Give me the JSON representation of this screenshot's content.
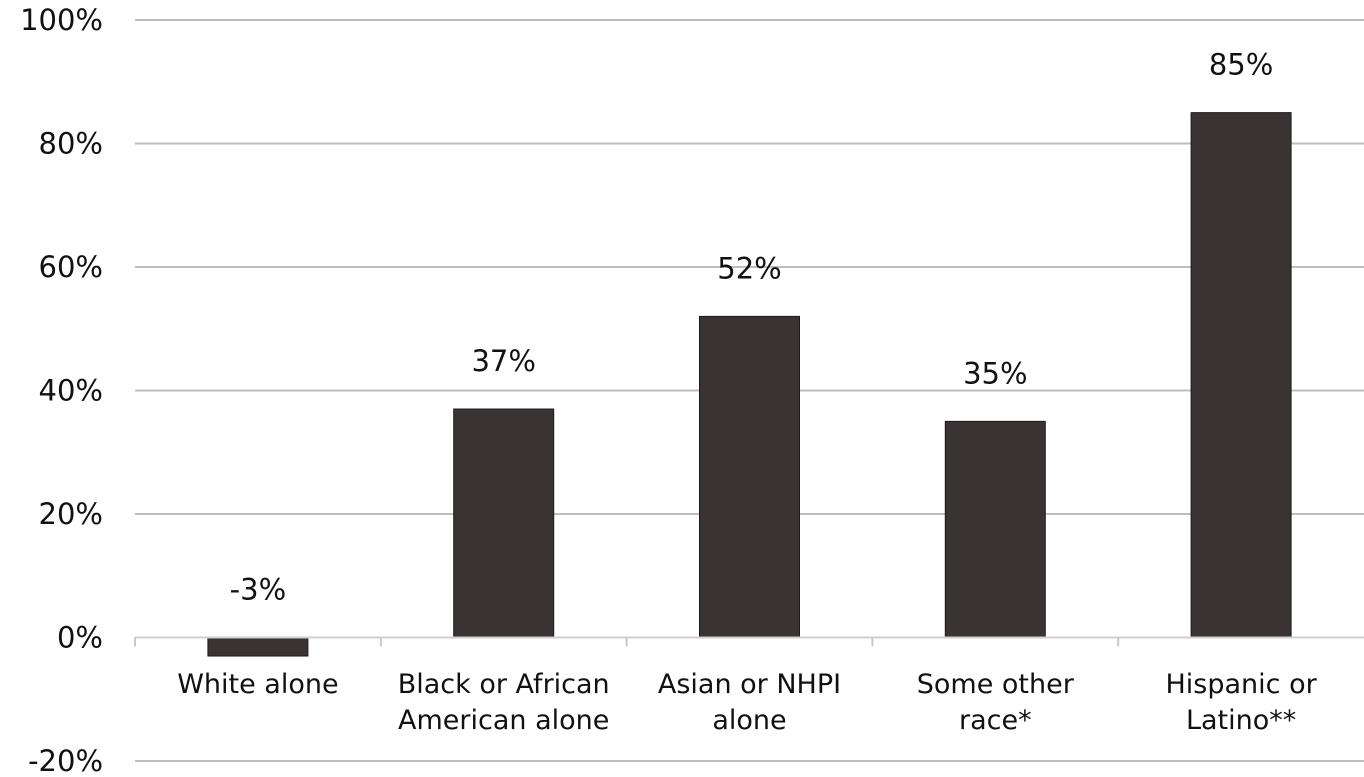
{
  "chart_data": {
    "type": "bar",
    "title": "",
    "xlabel": "",
    "ylabel": "",
    "categories": [
      [
        "White alone"
      ],
      [
        "Black or African",
        "American alone"
      ],
      [
        "Asian or NHPI",
        "alone"
      ],
      [
        "Some other",
        "race*"
      ],
      [
        "Hispanic or",
        "Latino**"
      ]
    ],
    "values": [
      -3,
      37,
      52,
      35,
      85
    ],
    "data_labels": [
      "-3%",
      "37%",
      "52%",
      "35%",
      "85%"
    ],
    "ylim": [
      -20,
      100
    ],
    "yticks": [
      100,
      80,
      60,
      40,
      20,
      0,
      -20
    ],
    "ytick_labels": [
      "100%",
      "80%",
      "60%",
      "40%",
      "20%",
      "0%",
      "-20%"
    ],
    "grid": true,
    "legend": "none",
    "bar_color": "#3a3334"
  }
}
